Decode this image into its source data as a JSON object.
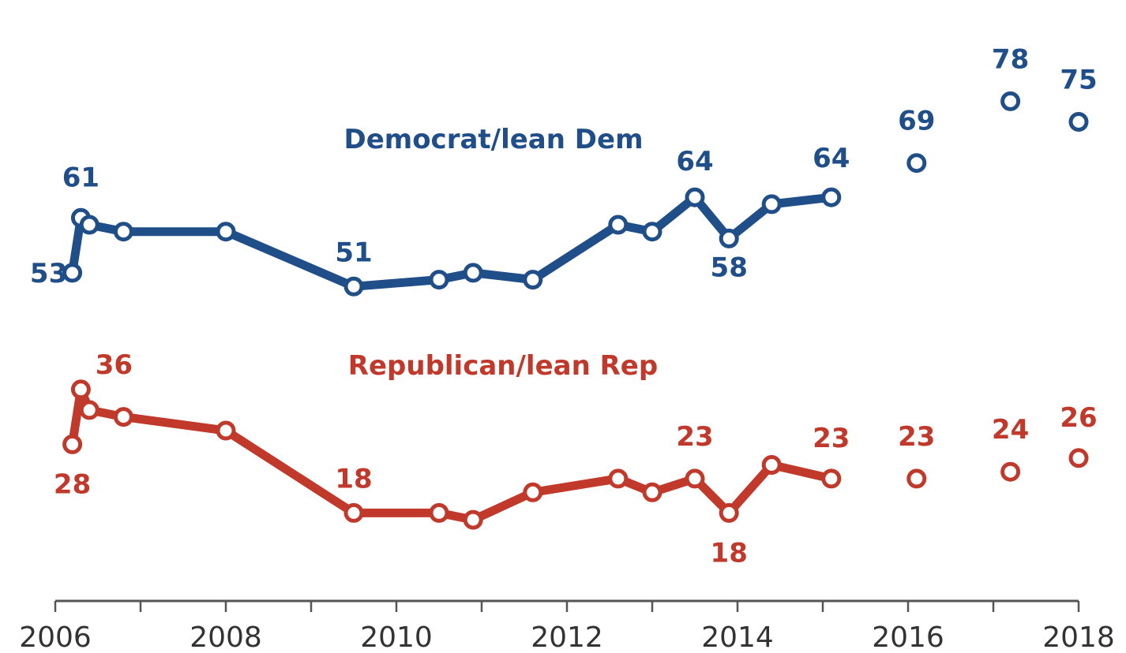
{
  "chart_data": {
    "type": "line",
    "x_axis": {
      "min": 2006,
      "max": 2018,
      "tick_labels": [
        "2006",
        "2008",
        "2010",
        "2012",
        "2014",
        "2016",
        "2018"
      ]
    },
    "ylim": [
      0,
      100
    ],
    "grid": false,
    "legend": "inline labels",
    "series": [
      {
        "name": "Democrat/lean Dem",
        "color": "#1f4e89",
        "points": [
          {
            "x": 2006.2,
            "y": 53
          },
          {
            "x": 2006.3,
            "y": 61
          },
          {
            "x": 2006.4,
            "y": 60
          },
          {
            "x": 2006.8,
            "y": 59
          },
          {
            "x": 2008.0,
            "y": 59
          },
          {
            "x": 2009.5,
            "y": 51
          },
          {
            "x": 2010.5,
            "y": 52
          },
          {
            "x": 2010.9,
            "y": 53
          },
          {
            "x": 2011.6,
            "y": 52
          },
          {
            "x": 2012.6,
            "y": 60
          },
          {
            "x": 2013.0,
            "y": 59
          },
          {
            "x": 2013.5,
            "y": 64
          },
          {
            "x": 2013.9,
            "y": 58
          },
          {
            "x": 2014.4,
            "y": 63
          },
          {
            "x": 2015.1,
            "y": 64
          }
        ],
        "extra_points": [
          {
            "x": 2016.1,
            "y": 69
          },
          {
            "x": 2017.2,
            "y": 78
          },
          {
            "x": 2018.0,
            "y": 75
          }
        ],
        "data_labels": [
          {
            "text": "53",
            "x": 2006.2,
            "y": 53
          },
          {
            "text": "61",
            "x": 2006.3,
            "y": 61
          },
          {
            "text": "51",
            "x": 2009.5,
            "y": 51
          },
          {
            "text": "64",
            "x": 2013.5,
            "y": 64
          },
          {
            "text": "58",
            "x": 2013.9,
            "y": 58
          },
          {
            "text": "64",
            "x": 2015.1,
            "y": 64
          },
          {
            "text": "69",
            "x": 2016.1,
            "y": 69
          },
          {
            "text": "78",
            "x": 2017.2,
            "y": 78
          },
          {
            "text": "75",
            "x": 2018.0,
            "y": 75
          }
        ]
      },
      {
        "name": "Republican/lean Rep",
        "color": "#c0392b",
        "points": [
          {
            "x": 2006.2,
            "y": 28
          },
          {
            "x": 2006.3,
            "y": 36
          },
          {
            "x": 2006.4,
            "y": 33
          },
          {
            "x": 2006.8,
            "y": 32
          },
          {
            "x": 2008.0,
            "y": 30
          },
          {
            "x": 2009.5,
            "y": 18
          },
          {
            "x": 2010.5,
            "y": 18
          },
          {
            "x": 2010.9,
            "y": 17
          },
          {
            "x": 2011.6,
            "y": 21
          },
          {
            "x": 2012.6,
            "y": 23
          },
          {
            "x": 2013.0,
            "y": 21
          },
          {
            "x": 2013.5,
            "y": 23
          },
          {
            "x": 2013.9,
            "y": 18
          },
          {
            "x": 2014.4,
            "y": 25
          },
          {
            "x": 2015.1,
            "y": 23
          }
        ],
        "extra_points": [
          {
            "x": 2016.1,
            "y": 23
          },
          {
            "x": 2017.2,
            "y": 24
          },
          {
            "x": 2018.0,
            "y": 26
          }
        ],
        "data_labels": [
          {
            "text": "28",
            "x": 2006.2,
            "y": 28
          },
          {
            "text": "36",
            "x": 2006.3,
            "y": 36
          },
          {
            "text": "18",
            "x": 2009.5,
            "y": 18
          },
          {
            "text": "23",
            "x": 2013.5,
            "y": 23
          },
          {
            "text": "18",
            "x": 2013.9,
            "y": 18
          },
          {
            "text": "23",
            "x": 2015.1,
            "y": 23
          },
          {
            "text": "23",
            "x": 2016.1,
            "y": 23
          },
          {
            "text": "24",
            "x": 2017.2,
            "y": 24
          },
          {
            "text": "26",
            "x": 2018.0,
            "y": 26
          }
        ]
      }
    ]
  }
}
